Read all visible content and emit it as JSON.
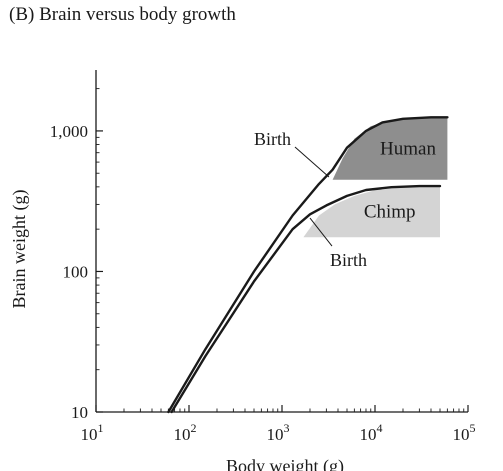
{
  "figure": {
    "title": "(B) Brain versus body growth"
  },
  "chart_data": {
    "type": "line",
    "title": "(B) Brain versus body growth",
    "xlabel": "Body weight (g)",
    "ylabel": "Brain weight (g)",
    "x_scale": "log",
    "y_scale": "log",
    "xlim": [
      10,
      100000
    ],
    "ylim": [
      10,
      2500
    ],
    "x_ticks": [
      {
        "value": 10,
        "base": "10",
        "exp": "1"
      },
      {
        "value": 100,
        "base": "10",
        "exp": "2"
      },
      {
        "value": 1000,
        "base": "10",
        "exp": "3"
      },
      {
        "value": 10000,
        "base": "10",
        "exp": "4"
      },
      {
        "value": 100000,
        "base": "10",
        "exp": "5"
      }
    ],
    "y_ticks": [
      {
        "value": 10,
        "label": "10"
      },
      {
        "value": 100,
        "label": "100"
      },
      {
        "value": 1000,
        "label": "1,000"
      }
    ],
    "grid": false,
    "series": [
      {
        "key": "human",
        "x": [
          60,
          150,
          500,
          1300,
          2500,
          3500,
          5000,
          8000,
          12000,
          20000,
          40000,
          60000
        ],
        "y": [
          10,
          28,
          100,
          250,
          420,
          530,
          760,
          1000,
          1150,
          1220,
          1250,
          1250
        ]
      },
      {
        "key": "chimp",
        "x": [
          65,
          150,
          500,
          1300,
          2000,
          3000,
          5000,
          8000,
          15000,
          30000,
          50000
        ],
        "y": [
          10,
          25,
          85,
          200,
          255,
          295,
          345,
          380,
          398,
          405,
          405
        ]
      }
    ],
    "regions": [
      {
        "label": "Human",
        "color": "#8e8e8e",
        "x": [
          3500,
          4500,
          6000,
          9000,
          14000,
          20000,
          30000,
          45000,
          60000,
          60000,
          3500
        ],
        "y": [
          450,
          640,
          880,
          1080,
          1180,
          1225,
          1245,
          1250,
          1250,
          450,
          450
        ]
      },
      {
        "label": "Chimp",
        "color": "#d4d4d4",
        "x": [
          1700,
          2500,
          3700,
          6000,
          10000,
          20000,
          35000,
          50000,
          50000,
          1700
        ],
        "y": [
          175,
          250,
          300,
          345,
          378,
          398,
          405,
          405,
          175,
          175
        ]
      }
    ],
    "annotations": [
      {
        "text": "Birth",
        "series": "human",
        "x": 3200,
        "y": 470
      },
      {
        "text": "Birth",
        "series": "chimp",
        "x": 2000,
        "y": 240
      }
    ]
  }
}
